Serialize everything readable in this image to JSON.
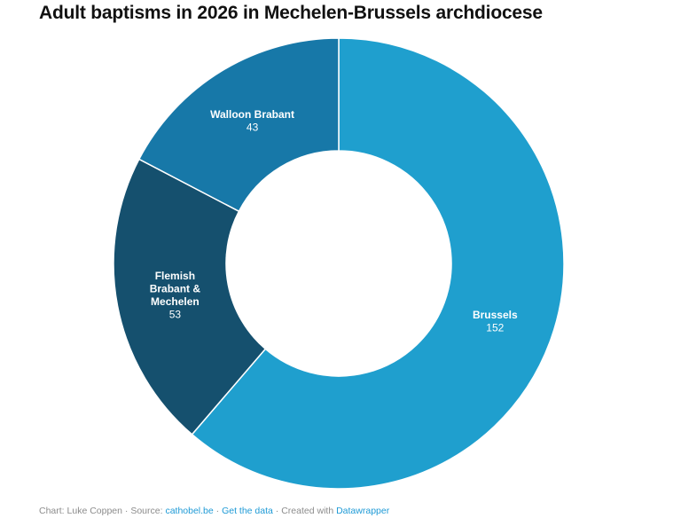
{
  "title": "Adult baptisms in 2026 in Mechelen-Brussels archdiocese",
  "chart_data": {
    "type": "pie",
    "subtype": "donut",
    "title": "Adult baptisms in 2026 in Mechelen-Brussels archdiocese",
    "total": 248,
    "start_angle_deg": 0,
    "direction": "clockwise",
    "inner_radius_ratio": 0.5,
    "grid": false,
    "legend": "none (direct labels inside slices)",
    "segments": [
      {
        "label": "Brussels",
        "label_lines": [
          "Brussels"
        ],
        "value": 152,
        "color": "#1F9FCE"
      },
      {
        "label": "Flemish Brabant & Mechelen",
        "label_lines": [
          "Flemish",
          "Brabant &",
          "Mechelen"
        ],
        "value": 53,
        "color": "#15506E"
      },
      {
        "label": "Walloon Brabant",
        "label_lines": [
          "Walloon Brabant"
        ],
        "value": 43,
        "color": "#1778A8"
      }
    ],
    "label_text_color": "#ffffff",
    "segment_divider_color": "#ffffff"
  },
  "footer": {
    "credit": "Chart: Luke Coppen",
    "separator": "·",
    "source_label": "Source:",
    "source_link": "cathobel.be",
    "get_data_label": "Get the data",
    "created_with": "Created with",
    "datawrapper_label": "Datawrapper"
  }
}
